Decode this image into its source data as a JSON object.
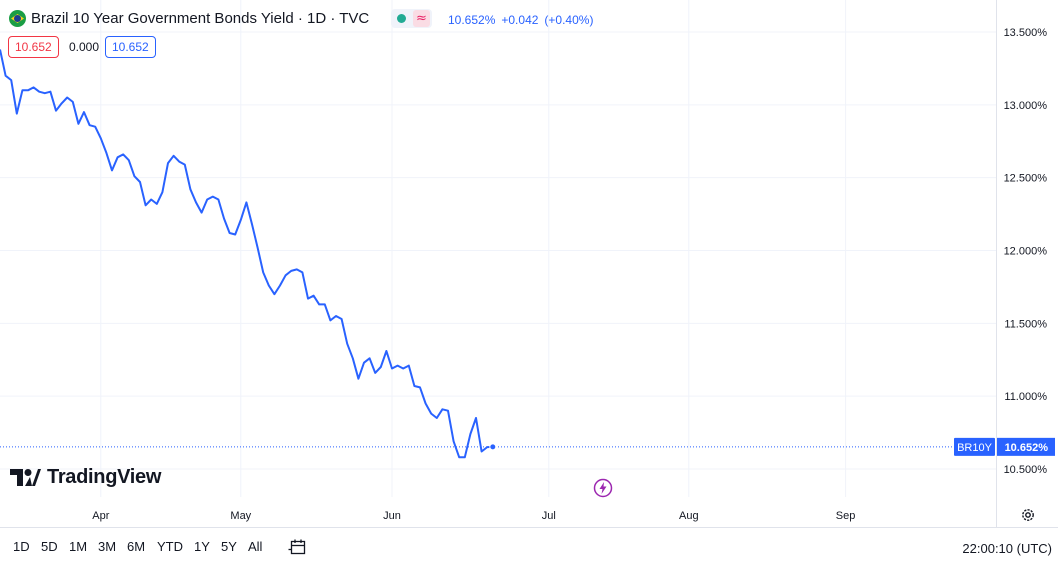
{
  "header": {
    "title": "Brazil 10 Year Government Bonds Yield · 1D · TVC",
    "last": "10.652%",
    "change": "+0.042",
    "change_pct": "(+0.40%)",
    "status_dot_color": "#22ab94",
    "wave_icon": "≈"
  },
  "trade": {
    "sell": "10.652",
    "spread": "0.000",
    "buy": "10.652"
  },
  "logo": {
    "text": "TradingView"
  },
  "chart_data": {
    "type": "line",
    "symbol": "BR10Y",
    "last_label": "10.652%",
    "line_color": "#2962ff",
    "grid": true,
    "ylim": [
      10.35,
      13.64
    ],
    "y_ticks": [
      "13.500%",
      "13.000%",
      "12.500%",
      "12.000%",
      "11.500%",
      "11.000%",
      "10.500%"
    ],
    "y_tick_values": [
      13.5,
      13.0,
      12.5,
      12.0,
      11.5,
      11.0,
      10.5
    ],
    "x_ticks": [
      "Apr",
      "May",
      "Jun",
      "Jul",
      "Aug",
      "Sep"
    ],
    "x_tick_index": [
      18,
      43,
      70,
      98,
      123,
      151
    ],
    "values": [
      13.38,
      13.2,
      13.17,
      12.94,
      13.1,
      13.1,
      13.12,
      13.09,
      13.08,
      13.09,
      12.96,
      13.01,
      13.05,
      13.02,
      12.87,
      12.95,
      12.86,
      12.85,
      12.77,
      12.67,
      12.55,
      12.64,
      12.66,
      12.62,
      12.51,
      12.47,
      12.31,
      12.35,
      12.32,
      12.4,
      12.6,
      12.65,
      12.61,
      12.59,
      12.42,
      12.33,
      12.26,
      12.35,
      12.37,
      12.35,
      12.22,
      12.12,
      12.11,
      12.21,
      12.33,
      12.18,
      12.02,
      11.85,
      11.76,
      11.7,
      11.76,
      11.83,
      11.86,
      11.87,
      11.85,
      11.67,
      11.69,
      11.63,
      11.63,
      11.52,
      11.55,
      11.53,
      11.36,
      11.26,
      11.12,
      11.23,
      11.26,
      11.16,
      11.2,
      11.31,
      11.19,
      11.21,
      11.19,
      11.21,
      11.07,
      11.06,
      10.95,
      10.88,
      10.85,
      10.91,
      10.9,
      10.69,
      10.58,
      10.58,
      10.74,
      10.85,
      10.62,
      10.65,
      10.652
    ]
  },
  "toolbar": {
    "ranges": [
      "1D",
      "5D",
      "1M",
      "3M",
      "6M",
      "YTD",
      "1Y",
      "5Y",
      "All"
    ],
    "time": "22:00:10 (UTC)"
  }
}
